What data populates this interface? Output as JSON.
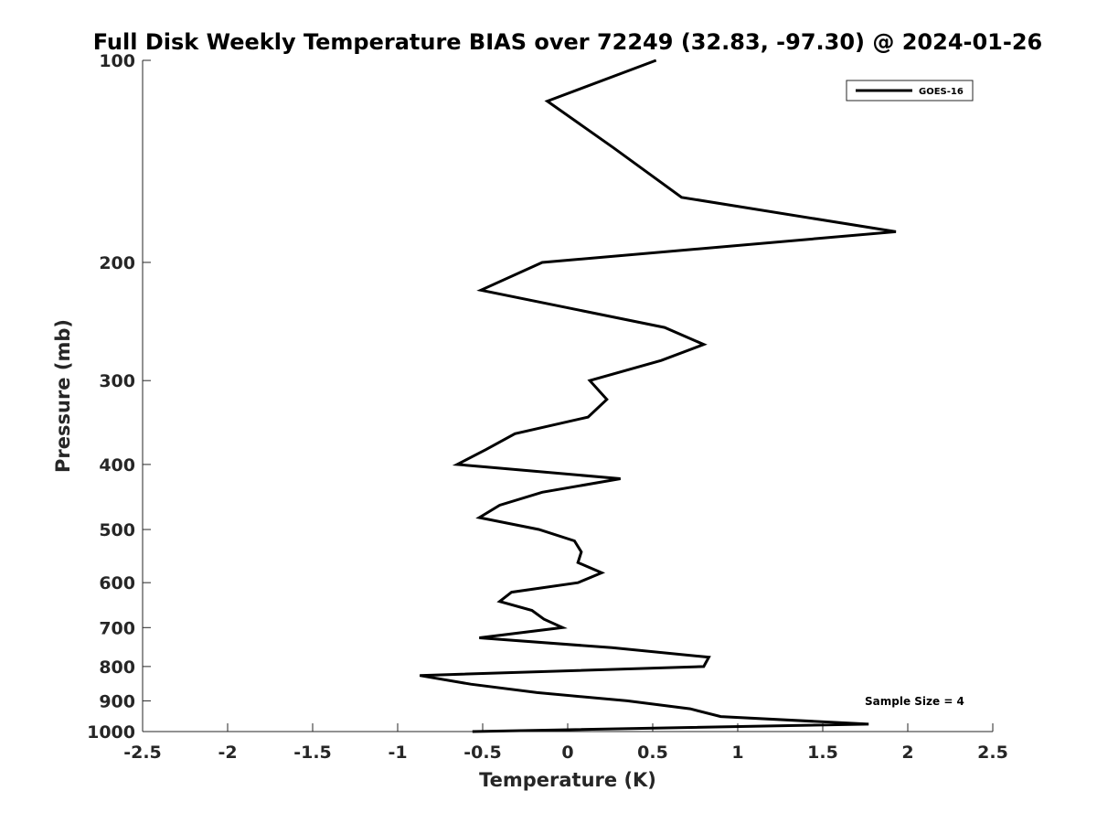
{
  "chart_data": {
    "type": "line",
    "title": "Full Disk Weekly Temperature BIAS over 72249 (32.83, -97.30) @ 2024-01-26",
    "xlabel": "Temperature (K)",
    "ylabel": "Pressure (mb)",
    "xlim": [
      -2.5,
      2.5
    ],
    "ylim": [
      1000,
      100
    ],
    "y_scale": "log",
    "y_reversed": true,
    "grid": false,
    "x_ticks": [
      -2.5,
      -2,
      -1.5,
      -1,
      -0.5,
      0,
      0.5,
      1,
      1.5,
      2,
      2.5
    ],
    "x_tick_labels": [
      "-2.5",
      "-2",
      "-1.5",
      "-1",
      "-0.5",
      "0",
      "0.5",
      "1",
      "1.5",
      "2",
      "2.5"
    ],
    "y_ticks": [
      100,
      200,
      300,
      400,
      500,
      600,
      700,
      800,
      900,
      1000
    ],
    "y_tick_labels": [
      "100",
      "200",
      "300",
      "400",
      "500",
      "600",
      "700",
      "800",
      "900",
      "1000"
    ],
    "legend": {
      "position": "top-right",
      "entries": [
        "GOES-16"
      ]
    },
    "annotation": "Sample Size = 4",
    "series": [
      {
        "name": "GOES-16",
        "color": "#000000",
        "points": [
          {
            "t": 0.52,
            "p": 100
          },
          {
            "t": -0.12,
            "p": 115
          },
          {
            "t": 0.27,
            "p": 135
          },
          {
            "t": 0.67,
            "p": 160
          },
          {
            "t": 1.93,
            "p": 180
          },
          {
            "t": -0.15,
            "p": 200
          },
          {
            "t": -0.51,
            "p": 220
          },
          {
            "t": 0.57,
            "p": 250
          },
          {
            "t": 0.8,
            "p": 265
          },
          {
            "t": 0.55,
            "p": 280
          },
          {
            "t": 0.13,
            "p": 300
          },
          {
            "t": 0.23,
            "p": 320
          },
          {
            "t": 0.12,
            "p": 340
          },
          {
            "t": -0.31,
            "p": 360
          },
          {
            "t": -0.48,
            "p": 380
          },
          {
            "t": -0.65,
            "p": 400
          },
          {
            "t": 0.31,
            "p": 420
          },
          {
            "t": -0.15,
            "p": 440
          },
          {
            "t": -0.4,
            "p": 460
          },
          {
            "t": -0.52,
            "p": 480
          },
          {
            "t": -0.17,
            "p": 500
          },
          {
            "t": 0.04,
            "p": 520
          },
          {
            "t": 0.08,
            "p": 540
          },
          {
            "t": 0.06,
            "p": 560
          },
          {
            "t": 0.2,
            "p": 580
          },
          {
            "t": 0.06,
            "p": 600
          },
          {
            "t": -0.33,
            "p": 620
          },
          {
            "t": -0.4,
            "p": 640
          },
          {
            "t": -0.21,
            "p": 660
          },
          {
            "t": -0.14,
            "p": 680
          },
          {
            "t": -0.03,
            "p": 700
          },
          {
            "t": -0.52,
            "p": 725
          },
          {
            "t": 0.26,
            "p": 750
          },
          {
            "t": 0.83,
            "p": 775
          },
          {
            "t": 0.8,
            "p": 800
          },
          {
            "t": -0.87,
            "p": 825
          },
          {
            "t": -0.57,
            "p": 850
          },
          {
            "t": -0.18,
            "p": 875
          },
          {
            "t": 0.35,
            "p": 900
          },
          {
            "t": 0.72,
            "p": 925
          },
          {
            "t": 0.9,
            "p": 950
          },
          {
            "t": 1.77,
            "p": 975
          },
          {
            "t": -0.56,
            "p": 1000
          }
        ]
      }
    ]
  }
}
